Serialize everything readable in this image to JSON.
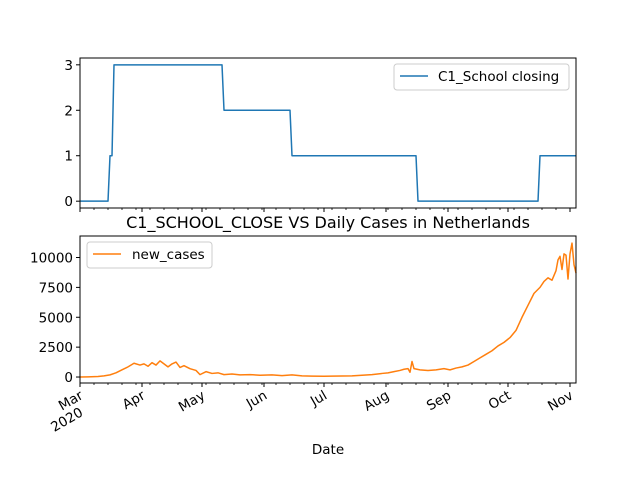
{
  "chart_data": [
    {
      "type": "line",
      "title": "",
      "xlabel": "",
      "ylabel": "",
      "ylim": [
        -0.15,
        3.15
      ],
      "yticks": [
        0,
        1,
        2,
        3
      ],
      "ytick_labels": [
        "0",
        "1",
        "2",
        "3"
      ],
      "grid": false,
      "legend_position": "upper right",
      "series": [
        {
          "name": "C1_School closing",
          "color": "#1f77b4",
          "points": [
            [
              "2020-03-01",
              0
            ],
            [
              "2020-03-15",
              0
            ],
            [
              "2020-03-16",
              1
            ],
            [
              "2020-03-17",
              1
            ],
            [
              "2020-03-18",
              3
            ],
            [
              "2020-05-11",
              3
            ],
            [
              "2020-05-12",
              2
            ],
            [
              "2020-06-14",
              2
            ],
            [
              "2020-06-15",
              1
            ],
            [
              "2020-08-16",
              1
            ],
            [
              "2020-08-17",
              0
            ],
            [
              "2020-10-16",
              0
            ],
            [
              "2020-10-17",
              1
            ],
            [
              "2020-11-04",
              1
            ]
          ]
        }
      ]
    },
    {
      "type": "line",
      "title": "C1_SCHOOL_CLOSE VS Daily Cases in Netherlands",
      "xlabel": "Date",
      "ylabel": "",
      "ylim": [
        -500,
        11800
      ],
      "yticks": [
        0,
        2500,
        5000,
        7500,
        10000
      ],
      "ytick_labels": [
        "0",
        "2500",
        "5000",
        "7500",
        "10000"
      ],
      "grid": false,
      "legend_position": "upper left",
      "series": [
        {
          "name": "new_cases",
          "color": "#ff7f0e",
          "points": [
            [
              "2020-03-01",
              0
            ],
            [
              "2020-03-05",
              10
            ],
            [
              "2020-03-10",
              40
            ],
            [
              "2020-03-13",
              100
            ],
            [
              "2020-03-16",
              180
            ],
            [
              "2020-03-19",
              350
            ],
            [
              "2020-03-22",
              600
            ],
            [
              "2020-03-25",
              850
            ],
            [
              "2020-03-28",
              1150
            ],
            [
              "2020-03-31",
              1000
            ],
            [
              "2020-04-02",
              1100
            ],
            [
              "2020-04-04",
              900
            ],
            [
              "2020-04-06",
              1200
            ],
            [
              "2020-04-08",
              1000
            ],
            [
              "2020-04-10",
              1350
            ],
            [
              "2020-04-12",
              1100
            ],
            [
              "2020-04-14",
              850
            ],
            [
              "2020-04-16",
              1100
            ],
            [
              "2020-04-18",
              1250
            ],
            [
              "2020-04-20",
              800
            ],
            [
              "2020-04-22",
              950
            ],
            [
              "2020-04-25",
              700
            ],
            [
              "2020-04-28",
              550
            ],
            [
              "2020-04-30",
              200
            ],
            [
              "2020-05-03",
              450
            ],
            [
              "2020-05-06",
              300
            ],
            [
              "2020-05-09",
              350
            ],
            [
              "2020-05-12",
              200
            ],
            [
              "2020-05-16",
              250
            ],
            [
              "2020-05-20",
              180
            ],
            [
              "2020-05-25",
              200
            ],
            [
              "2020-05-30",
              150
            ],
            [
              "2020-06-05",
              180
            ],
            [
              "2020-06-10",
              120
            ],
            [
              "2020-06-15",
              180
            ],
            [
              "2020-06-20",
              100
            ],
            [
              "2020-06-25",
              80
            ],
            [
              "2020-07-01",
              60
            ],
            [
              "2020-07-05",
              80
            ],
            [
              "2020-07-10",
              90
            ],
            [
              "2020-07-15",
              100
            ],
            [
              "2020-07-20",
              150
            ],
            [
              "2020-07-25",
              200
            ],
            [
              "2020-07-30",
              300
            ],
            [
              "2020-08-02",
              350
            ],
            [
              "2020-08-05",
              450
            ],
            [
              "2020-08-08",
              550
            ],
            [
              "2020-08-10",
              650
            ],
            [
              "2020-08-12",
              700
            ],
            [
              "2020-08-13",
              400
            ],
            [
              "2020-08-14",
              1300
            ],
            [
              "2020-08-15",
              700
            ],
            [
              "2020-08-18",
              600
            ],
            [
              "2020-08-22",
              550
            ],
            [
              "2020-08-26",
              600
            ],
            [
              "2020-08-30",
              700
            ],
            [
              "2020-09-02",
              600
            ],
            [
              "2020-09-05",
              750
            ],
            [
              "2020-09-08",
              850
            ],
            [
              "2020-09-11",
              1000
            ],
            [
              "2020-09-14",
              1300
            ],
            [
              "2020-09-17",
              1600
            ],
            [
              "2020-09-20",
              1900
            ],
            [
              "2020-09-23",
              2200
            ],
            [
              "2020-09-26",
              2600
            ],
            [
              "2020-09-29",
              2900
            ],
            [
              "2020-10-02",
              3300
            ],
            [
              "2020-10-05",
              3900
            ],
            [
              "2020-10-08",
              5000
            ],
            [
              "2020-10-11",
              6000
            ],
            [
              "2020-10-14",
              7000
            ],
            [
              "2020-10-17",
              7500
            ],
            [
              "2020-10-19",
              8000
            ],
            [
              "2020-10-21",
              8300
            ],
            [
              "2020-10-23",
              8100
            ],
            [
              "2020-10-25",
              8900
            ],
            [
              "2020-10-26",
              9800
            ],
            [
              "2020-10-27",
              10100
            ],
            [
              "2020-10-28",
              9000
            ],
            [
              "2020-10-29",
              10300
            ],
            [
              "2020-10-30",
              10200
            ],
            [
              "2020-10-31",
              8200
            ],
            [
              "2020-11-01",
              10300
            ],
            [
              "2020-11-02",
              11200
            ],
            [
              "2020-11-03",
              9400
            ],
            [
              "2020-11-04",
              8700
            ]
          ]
        }
      ]
    }
  ],
  "x_axis": {
    "range": [
      "2020-03-01",
      "2020-11-04"
    ],
    "major_ticks": [
      {
        "date": "2020-03-01",
        "label": "Mar",
        "sub_label": "2020"
      },
      {
        "date": "2020-04-01",
        "label": "Apr",
        "sub_label": ""
      },
      {
        "date": "2020-05-01",
        "label": "May",
        "sub_label": ""
      },
      {
        "date": "2020-06-01",
        "label": "Jun",
        "sub_label": ""
      },
      {
        "date": "2020-07-01",
        "label": "Jul",
        "sub_label": ""
      },
      {
        "date": "2020-08-01",
        "label": "Aug",
        "sub_label": ""
      },
      {
        "date": "2020-09-01",
        "label": "Sep",
        "sub_label": ""
      },
      {
        "date": "2020-10-01",
        "label": "Oct",
        "sub_label": ""
      },
      {
        "date": "2020-11-01",
        "label": "Nov",
        "sub_label": ""
      }
    ],
    "minor_ticks": [
      "2020-03-08",
      "2020-03-15",
      "2020-03-22",
      "2020-03-29",
      "2020-04-05",
      "2020-04-12",
      "2020-04-19",
      "2020-04-26",
      "2020-05-03",
      "2020-05-10",
      "2020-05-17",
      "2020-05-24",
      "2020-05-31",
      "2020-06-07",
      "2020-06-14",
      "2020-06-21",
      "2020-06-28",
      "2020-07-05",
      "2020-07-12",
      "2020-07-19",
      "2020-07-26",
      "2020-08-02",
      "2020-08-09",
      "2020-08-16",
      "2020-08-23",
      "2020-08-30",
      "2020-09-06",
      "2020-09-13",
      "2020-09-20",
      "2020-09-27",
      "2020-10-04",
      "2020-10-11",
      "2020-10-18",
      "2020-10-25"
    ]
  }
}
